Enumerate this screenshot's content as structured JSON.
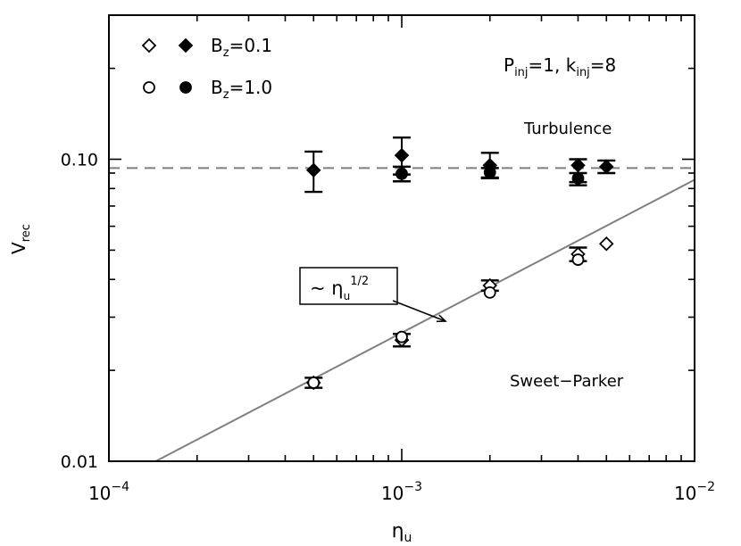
{
  "chart_data": {
    "type": "scatter",
    "x_scale": "log",
    "y_scale": "log",
    "xlim": [
      0.0001,
      0.01
    ],
    "ylim": [
      0.01,
      0.3
    ],
    "xlabel": {
      "base": "η",
      "sub": "u"
    },
    "ylabel": {
      "base": "V",
      "sub": "rec"
    },
    "x_ticks": [
      {
        "value": 0.0001,
        "base": "10",
        "exp": "−4"
      },
      {
        "value": 0.001,
        "base": "10",
        "exp": "−3"
      },
      {
        "value": 0.01,
        "base": "10",
        "exp": "−2"
      }
    ],
    "y_ticks": [
      {
        "value": 0.01,
        "label": "0.01"
      },
      {
        "value": 0.1,
        "label": "0.10"
      }
    ],
    "legend": {
      "placement": "top-left",
      "entries": [
        {
          "base": "B",
          "sub": "z",
          "rest": "=0.1",
          "open_marker": "diamond",
          "filled_marker": "diamond"
        },
        {
          "base": "B",
          "sub": "z",
          "rest": "=1.0",
          "open_marker": "circle",
          "filled_marker": "circle"
        }
      ]
    },
    "params": {
      "p1_base": "P",
      "p1_sub": "inj",
      "p1_rest": "=1, ",
      "p2_base": "k",
      "p2_sub": "inj",
      "p2_rest": "=8"
    },
    "regions": {
      "turbulence": "Turbulence",
      "sweet_parker": "Sweet−Parker"
    },
    "reference_line": {
      "label_prefix": "~",
      "label_base": "η",
      "label_sub": "u",
      "label_exp": "1/2",
      "points": [
        [
          0.0001,
          0.0083
        ],
        [
          0.01,
          0.0855
        ]
      ],
      "color": "#808080"
    },
    "horizontal_line": {
      "y": 0.0935,
      "style": "dashed",
      "color": "#808080"
    },
    "series": [
      {
        "name": "B_z=0.1 Sweet-Parker",
        "marker": "diamond",
        "filled": false,
        "points": [
          {
            "x": 0.0005,
            "y": 0.0182,
            "err": 0.0007
          },
          {
            "x": 0.001,
            "y": 0.0252,
            "err": 0.0012
          },
          {
            "x": 0.002,
            "y": 0.0382,
            "err": 0.0015
          },
          {
            "x": 0.004,
            "y": 0.0485,
            "err": 0.0025
          },
          {
            "x": 0.005,
            "y": 0.0525,
            "err": 0
          }
        ]
      },
      {
        "name": "B_z=1.0 Sweet-Parker",
        "marker": "circle",
        "filled": false,
        "points": [
          {
            "x": 0.0005,
            "y": 0.0182
          },
          {
            "x": 0.001,
            "y": 0.0258
          },
          {
            "x": 0.002,
            "y": 0.0362
          },
          {
            "x": 0.004,
            "y": 0.0465
          }
        ]
      },
      {
        "name": "B_z=0.1 Turbulence",
        "marker": "diamond",
        "filled": true,
        "points": [
          {
            "x": 0.0005,
            "y": 0.092,
            "err_low": 0.078,
            "err_high": 0.106
          },
          {
            "x": 0.001,
            "y": 0.103,
            "err_low": 0.089,
            "err_high": 0.118
          },
          {
            "x": 0.002,
            "y": 0.0955,
            "err_low": 0.087,
            "err_high": 0.105
          },
          {
            "x": 0.004,
            "y": 0.0955,
            "err_low": 0.082,
            "err_high": 0.1
          },
          {
            "x": 0.005,
            "y": 0.0945,
            "err_low": 0.09,
            "err_high": 0.099
          }
        ]
      },
      {
        "name": "B_z=1.0 Turbulence",
        "marker": "circle",
        "filled": true,
        "points": [
          {
            "x": 0.001,
            "y": 0.0895,
            "err_low": 0.0845,
            "err_high": 0.0945
          },
          {
            "x": 0.002,
            "y": 0.0905,
            "err_low": 0.0865,
            "err_high": 0.0935
          },
          {
            "x": 0.004,
            "y": 0.0865,
            "err_low": 0.084,
            "err_high": 0.09
          }
        ]
      }
    ]
  }
}
